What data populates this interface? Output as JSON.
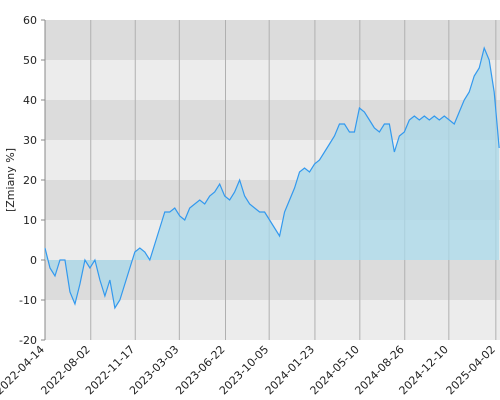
{
  "chart_data": {
    "type": "line",
    "y_label": "[Zmiany %]",
    "x": [
      "2022-04-14",
      "2022-04-26",
      "2022-05-08",
      "2022-05-20",
      "2022-06-01",
      "2022-06-13",
      "2022-06-25",
      "2022-07-07",
      "2022-07-19",
      "2022-07-31",
      "2022-08-12",
      "2022-08-24",
      "2022-09-05",
      "2022-09-17",
      "2022-09-29",
      "2022-10-11",
      "2022-10-23",
      "2022-11-04",
      "2022-11-16",
      "2022-11-28",
      "2022-12-10",
      "2022-12-22",
      "2023-01-03",
      "2023-01-15",
      "2023-01-27",
      "2023-02-08",
      "2023-02-20",
      "2023-03-04",
      "2023-03-16",
      "2023-03-28",
      "2023-04-09",
      "2023-04-21",
      "2023-05-03",
      "2023-05-15",
      "2023-05-27",
      "2023-06-08",
      "2023-06-20",
      "2023-07-02",
      "2023-07-14",
      "2023-07-26",
      "2023-08-07",
      "2023-08-19",
      "2023-08-31",
      "2023-09-12",
      "2023-09-24",
      "2023-10-06",
      "2023-10-18",
      "2023-10-30",
      "2023-11-11",
      "2023-11-23",
      "2023-12-05",
      "2023-12-17",
      "2023-12-29",
      "2024-01-10",
      "2024-01-22",
      "2024-02-03",
      "2024-02-15",
      "2024-02-27",
      "2024-03-10",
      "2024-03-22",
      "2024-04-03",
      "2024-04-15",
      "2024-04-27",
      "2024-05-09",
      "2024-05-21",
      "2024-06-02",
      "2024-06-14",
      "2024-06-26",
      "2024-07-08",
      "2024-07-20",
      "2024-08-01",
      "2024-08-13",
      "2024-08-25",
      "2024-09-06",
      "2024-09-18",
      "2024-09-30",
      "2024-10-12",
      "2024-10-24",
      "2024-11-05",
      "2024-11-17",
      "2024-11-29",
      "2024-12-11",
      "2024-12-23",
      "2025-01-04",
      "2025-01-16",
      "2025-01-28",
      "2025-02-09",
      "2025-02-21",
      "2025-03-05",
      "2025-03-17",
      "2025-03-29",
      "2025-04-10"
    ],
    "series": [
      {
        "color": "#3399ee",
        "fill": "#a8d8ea",
        "values": [
          3,
          -2,
          -4,
          0,
          0,
          -8,
          -11,
          -6,
          0,
          -2,
          0,
          -5,
          -9,
          -5,
          -12,
          -10,
          -6,
          -2,
          2,
          3,
          2,
          0,
          4,
          8,
          12,
          12,
          13,
          11,
          10,
          13,
          14,
          15,
          14,
          16,
          17,
          19,
          16,
          15,
          17,
          20,
          16,
          14,
          13,
          12,
          12,
          10,
          8,
          6,
          12,
          15,
          18,
          22,
          23,
          22,
          24,
          25,
          27,
          29,
          31,
          34,
          34,
          32,
          32,
          38,
          37,
          35,
          33,
          32,
          34,
          34,
          27,
          31,
          32,
          35,
          36,
          35,
          36,
          35,
          36,
          35,
          36,
          35,
          34,
          37,
          40,
          42,
          46,
          48,
          53,
          50,
          42,
          28
        ]
      }
    ],
    "xlim": [
      "2022-04-14",
      "2025-04-12"
    ],
    "xticks": [
      "2022-04-14",
      "2022-08-02",
      "2022-11-17",
      "2023-03-03",
      "2023-06-22",
      "2023-10-05",
      "2024-01-23",
      "2024-05-10",
      "2024-08-26",
      "2024-12-10",
      "2025-04-02"
    ],
    "ylim": [
      -20,
      60
    ],
    "yticks": [
      -20,
      -10,
      0,
      10,
      20,
      30,
      40,
      50,
      60
    ],
    "grid": true
  }
}
